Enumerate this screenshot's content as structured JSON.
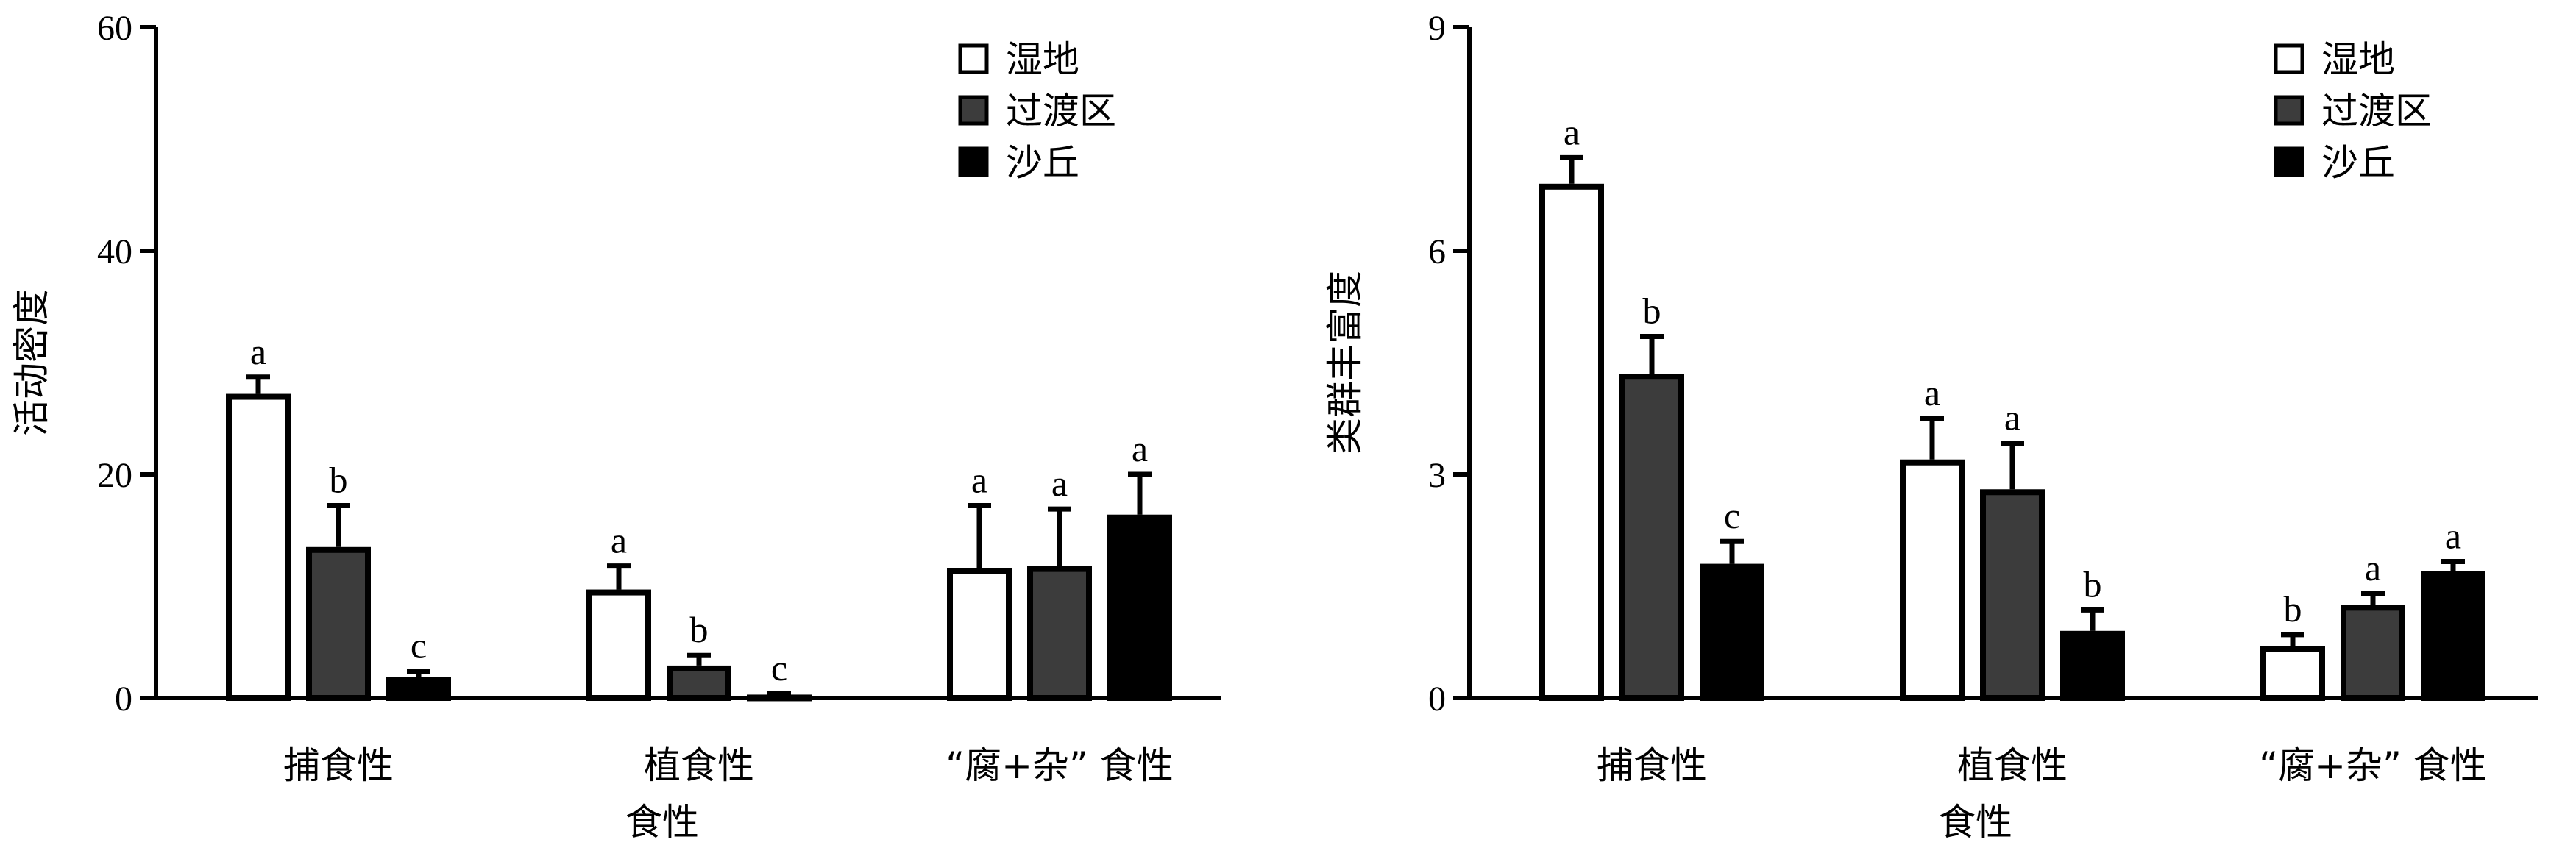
{
  "chart_data": [
    {
      "type": "bar",
      "categories": [
        "捕食性",
        "植食性",
        "“腐+杂” 食性"
      ],
      "xlabel": "食性",
      "ylabel": "活动密度",
      "ylim": [
        0,
        60
      ],
      "yticks": [
        0,
        20,
        40,
        60
      ],
      "legend_position": "top-right",
      "error_bars": "positive",
      "series": [
        {
          "name": "湿地",
          "color": "#ffffff",
          "values": [
            27.2,
            9.7,
            11.6
          ],
          "errors": [
            1.5,
            2.1,
            5.6
          ],
          "labels": [
            "a",
            "a",
            "a"
          ]
        },
        {
          "name": "过渡区",
          "color": "#3c3c3c",
          "values": [
            13.5,
            2.9,
            11.8
          ],
          "errors": [
            3.7,
            0.9,
            5.1
          ],
          "labels": [
            "b",
            "b",
            "a"
          ]
        },
        {
          "name": "沙丘",
          "color": "#000000",
          "values": [
            1.9,
            0.3,
            16.4
          ],
          "errors": [
            0.5,
            0.1,
            3.6
          ],
          "labels": [
            "c",
            "c",
            "a"
          ]
        }
      ]
    },
    {
      "type": "bar",
      "categories": [
        "捕食性",
        "植食性",
        "“腐+杂” 食性"
      ],
      "xlabel": "食性",
      "ylabel": "类群丰富度",
      "ylim": [
        0,
        9
      ],
      "yticks": [
        0,
        3,
        6,
        9
      ],
      "legend_position": "top-right",
      "error_bars": "positive",
      "series": [
        {
          "name": "湿地",
          "color": "#ffffff",
          "values": [
            6.9,
            3.2,
            0.7
          ],
          "errors": [
            0.35,
            0.55,
            0.15
          ],
          "labels": [
            "a",
            "a",
            "b"
          ]
        },
        {
          "name": "过渡区",
          "color": "#3c3c3c",
          "values": [
            4.35,
            2.8,
            1.25
          ],
          "errors": [
            0.5,
            0.62,
            0.15
          ],
          "labels": [
            "b",
            "a",
            "a"
          ]
        },
        {
          "name": "沙丘",
          "color": "#000000",
          "values": [
            1.8,
            0.9,
            1.7
          ],
          "errors": [
            0.3,
            0.28,
            0.13
          ],
          "labels": [
            "c",
            "b",
            "a"
          ]
        }
      ]
    }
  ]
}
